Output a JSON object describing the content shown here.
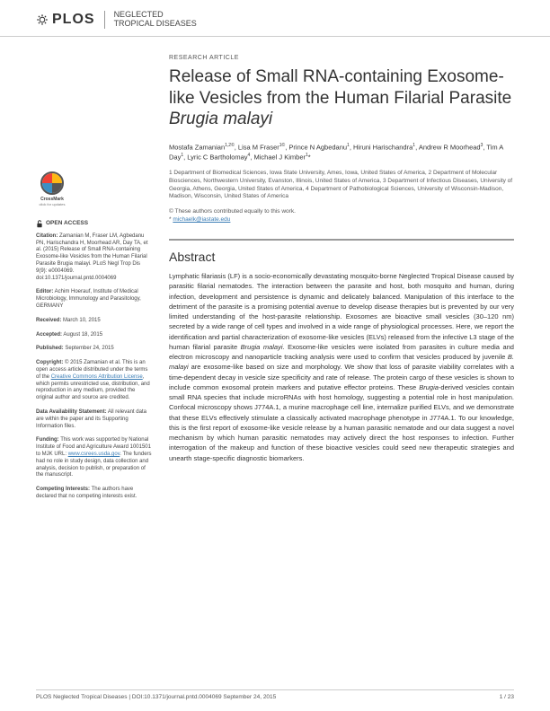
{
  "header": {
    "publisher": "PLOS",
    "journal_line1": "NEGLECTED",
    "journal_line2": "TROPICAL DISEASES"
  },
  "article": {
    "type": "RESEARCH ARTICLE",
    "title_pre": "Release of Small RNA-containing Exosome-like Vesicles from the Human Filarial Parasite ",
    "title_species": "Brugia malayi",
    "authors_html": "Mostafa Zamanian<sup>1,2©</sup>, Lisa M Fraser<sup>1©</sup>, Prince N Agbedanu<sup>1</sup>, Hiruni Harischandra<sup>1</sup>, Andrew R Moorhead<sup>3</sup>, Tim A Day<sup>1</sup>, Lyric C Bartholomay<sup>4</sup>, Michael J Kimber<sup>1</sup>*",
    "affiliations": "1 Department of Biomedical Sciences, Iowa State University, Ames, Iowa, United States of America, 2 Department of Molecular Biosciences, Northwestern University, Evanston, Illinois, United States of America, 3 Department of Infectious Diseases, University of Georgia, Athens, Georgia, United States of America, 4 Department of Pathobiological Sciences, University of Wisconsin-Madison, Madison, Wisconsin, United States of America",
    "equal_contrib": "© These authors contributed equally to this work.",
    "corr_email": "michaelk@iastate.edu",
    "abstract_heading": "Abstract",
    "abstract": "Lymphatic filariasis (LF) is a socio-economically devastating mosquito-borne Neglected Tropical Disease caused by parasitic filarial nematodes. The interaction between the parasite and host, both mosquito and human, during infection, development and persistence is dynamic and delicately balanced. Manipulation of this interface to the detriment of the parasite is a promising potential avenue to develop disease therapies but is prevented by our very limited understanding of the host-parasite relationship. Exosomes are bioactive small vesicles (30–120 nm) secreted by a wide range of cell types and involved in a wide range of physiological processes. Here, we report the identification and partial characterization of exosome-like vesicles (ELVs) released from the infective L3 stage of the human filarial parasite Brugia malayi. Exosome-like vesicles were isolated from parasites in culture media and electron microscopy and nanoparticle tracking analysis were used to confirm that vesicles produced by juvenile B. malayi are exosome-like based on size and morphology. We show that loss of parasite viability correlates with a time-dependent decay in vesicle size specificity and rate of release. The protein cargo of these vesicles is shown to include common exosomal protein markers and putative effector proteins. These Brugia-derived vesicles contain small RNA species that include microRNAs with host homology, suggesting a potential role in host manipulation. Confocal microscopy shows J774A.1, a murine macrophage cell line, internalize purified ELVs, and we demonstrate that these ELVs effectively stimulate a classically activated macrophage phenotype in J774A.1. To our knowledge, this is the first report of exosome-like vesicle release by a human parasitic nematode and our data suggest a novel mechanism by which human parasitic nematodes may actively direct the host responses to infection. Further interrogation of the makeup and function of these bioactive vesicles could seed new therapeutic strategies and unearth stage-specific diagnostic biomarkers."
  },
  "sidebar": {
    "crossmark_label": "CrossMark",
    "crossmark_sub": "click for updates",
    "open_access": "OPEN ACCESS",
    "citation_label": "Citation:",
    "citation": " Zamanian M, Fraser LM, Agbedanu PN, Harischandra H, Moorhead AR, Day TA, et al. (2015) Release of Small RNA-containing Exosome-like Vesicles from the Human Filarial Parasite Brugia malayi. PLoS Negl Trop Dis 9(9): e0004069. doi:10.1371/journal.pntd.0004069",
    "editor_label": "Editor:",
    "editor": " Achim Hoerauf, Institute of Medical Microbiology, Immunology and Parasitology, GERMANY",
    "received_label": "Received:",
    "received": " March 10, 2015",
    "accepted_label": "Accepted:",
    "accepted": " August 18, 2015",
    "published_label": "Published:",
    "published": " September 24, 2015",
    "copyright_label": "Copyright:",
    "copyright_pre": " © 2015 Zamanian et al. This is an open access article distributed under the terms of the ",
    "cc_link": "Creative Commons Attribution License",
    "copyright_post": ", which permits unrestricted use, distribution, and reproduction in any medium, provided the original author and source are credited.",
    "data_label": "Data Availability Statement:",
    "data": " All relevant data are within the paper and its Supporting Information files.",
    "funding_label": "Funding:",
    "funding_pre": " This work was supported by National Institute of Food and Agriculture Award 1001501 to MJK URL: ",
    "funding_link": "www.csrees.usda.gov",
    "funding_post": ". The funders had no role in study design, data collection and analysis, decision to publish, or preparation of the manuscript.",
    "competing_label": "Competing Interests:",
    "competing": " The authors have declared that no competing interests exist."
  },
  "footer": {
    "left": "PLOS Neglected Tropical Diseases | DOI:10.1371/journal.pntd.0004069   September 24, 2015",
    "right": "1 / 23"
  },
  "colors": {
    "link": "#3b7db5",
    "rule": "#999999",
    "text": "#333333"
  }
}
